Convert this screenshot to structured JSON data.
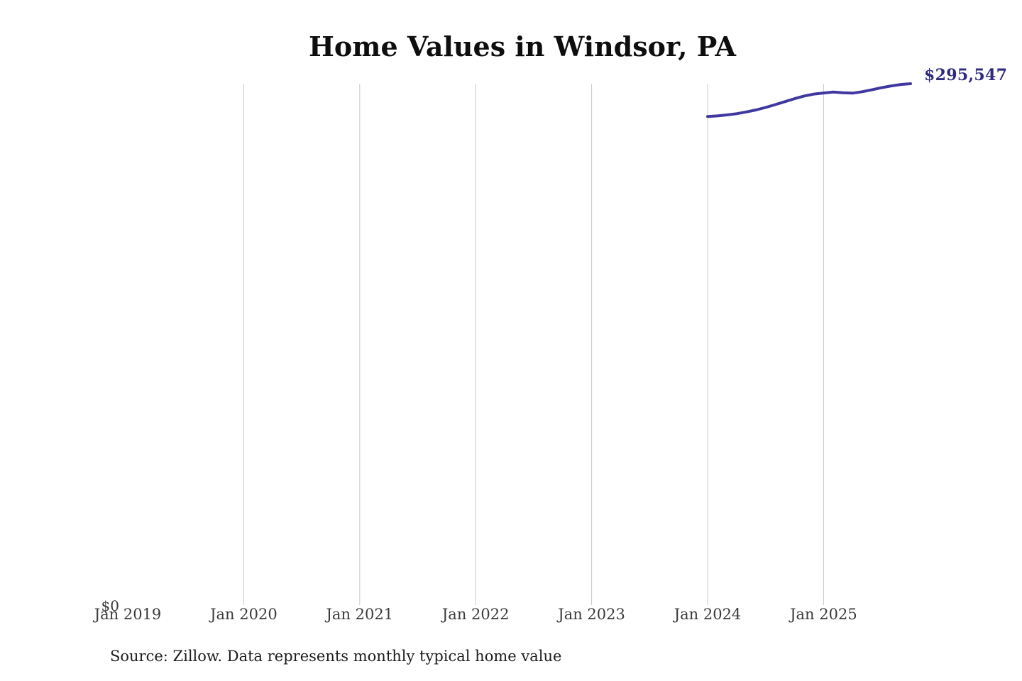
{
  "page": {
    "title": "Home Values in Windsor, PA",
    "source_note": "Source: Zillow. Data represents monthly typical home value"
  },
  "chart_data": {
    "type": "line",
    "title": "Home Values in Windsor, PA",
    "series_name": "Monthly typical home value",
    "x": [
      "Jan 2024",
      "Feb 2024",
      "Mar 2024",
      "Apr 2024",
      "May 2024",
      "Jun 2024",
      "Jul 2024",
      "Aug 2024",
      "Sep 2024",
      "Oct 2024",
      "Nov 2024",
      "Dec 2024",
      "Jan 2025",
      "Feb 2025",
      "Mar 2025",
      "Apr 2025",
      "May 2025",
      "Jun 2025",
      "Jul 2025",
      "Aug 2025",
      "Sep 2025",
      "Oct 2025"
    ],
    "values": [
      277000,
      277350,
      277900,
      278600,
      279600,
      280700,
      282100,
      283700,
      285400,
      287100,
      288600,
      289700,
      290300,
      290800,
      290400,
      290200,
      291000,
      292100,
      293300,
      294300,
      295100,
      295547
    ],
    "end_label": "$295,547",
    "y_zero_label": "$0",
    "ylim": [
      0,
      295547
    ],
    "xlabel": "",
    "ylabel": "",
    "legend": "none",
    "grid": "vertical-only",
    "x_ticks": [
      {
        "label": "Jan 2019",
        "gridline": false
      },
      {
        "label": "Jan 2020",
        "gridline": true
      },
      {
        "label": "Jan 2021",
        "gridline": true
      },
      {
        "label": "Jan 2022",
        "gridline": true
      },
      {
        "label": "Jan 2023",
        "gridline": true
      },
      {
        "label": "Jan 2024",
        "gridline": true
      },
      {
        "label": "Jan 2025",
        "gridline": true
      }
    ],
    "line_color": "#3f38a0",
    "end_label_color": "#2e2b7e",
    "gridline_color": "#c9c9c9"
  }
}
